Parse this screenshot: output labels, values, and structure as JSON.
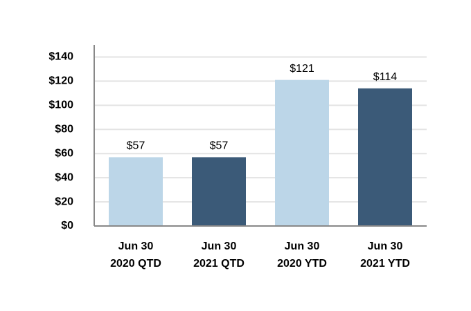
{
  "chart_data": {
    "type": "bar",
    "categories": [
      "Jun 30\n2020 QTD",
      "Jun 30\n2021 QTD",
      "Jun 30\n2020 YTD",
      "Jun 30\n2021 YTD"
    ],
    "values": [
      57,
      57,
      121,
      114
    ],
    "value_labels": [
      "$57",
      "$57",
      "$121",
      "$114"
    ],
    "colors": [
      "#bcd6e8",
      "#3b5a78",
      "#bcd6e8",
      "#3b5a78"
    ],
    "ylim": [
      0,
      150
    ],
    "yticks": [
      {
        "value": 0,
        "label": "$0"
      },
      {
        "value": 20,
        "label": "$20"
      },
      {
        "value": 40,
        "label": "$40"
      },
      {
        "value": 60,
        "label": "$60"
      },
      {
        "value": 80,
        "label": "$80"
      },
      {
        "value": 100,
        "label": "$100"
      },
      {
        "value": 120,
        "label": "$120"
      },
      {
        "value": 140,
        "label": "$140"
      }
    ],
    "grid": true
  }
}
